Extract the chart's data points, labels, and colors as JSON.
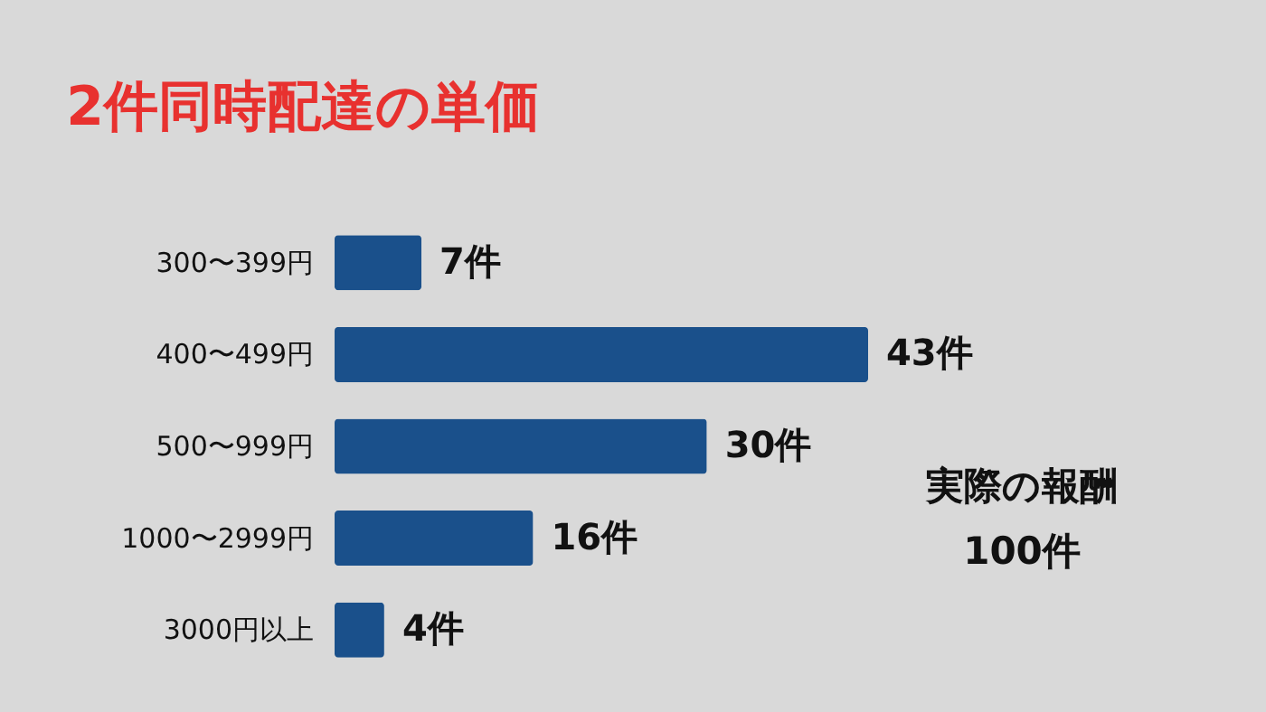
{
  "chart_data": {
    "type": "bar",
    "orientation": "horizontal",
    "title": "2件同時配達の単価",
    "categories": [
      "300〜399円",
      "400〜499円",
      "500〜999円",
      "1000〜2999円",
      "3000円以上"
    ],
    "values": [
      7,
      43,
      30,
      16,
      4
    ],
    "value_labels": [
      "7件",
      "43件",
      "30件",
      "16件",
      "4件"
    ],
    "color": "#1a508b",
    "annotations": [
      "実際の報酬\n100件"
    ]
  }
}
